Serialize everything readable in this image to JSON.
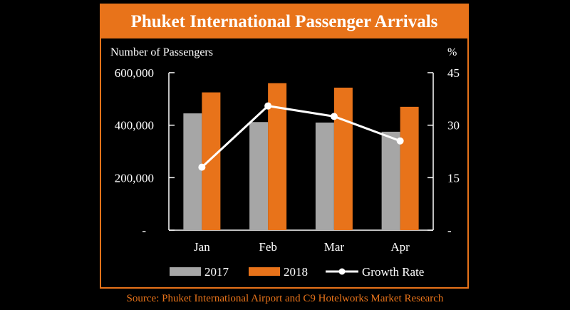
{
  "chart_data": {
    "type": "bar",
    "title": "Phuket International Passenger Arrivals",
    "ylabel_left": "Number of Passengers",
    "ylabel_right": "%",
    "categories": [
      "Jan",
      "Feb",
      "Mar",
      "Apr"
    ],
    "ylim_left": [
      0,
      600000
    ],
    "ylim_right": [
      0,
      45
    ],
    "left_ticks": [
      {
        "value": 0,
        "label": "-"
      },
      {
        "value": 200000,
        "label": "200,000"
      },
      {
        "value": 400000,
        "label": "400,000"
      },
      {
        "value": 600000,
        "label": "600,000"
      }
    ],
    "right_ticks": [
      {
        "value": 0,
        "label": "-"
      },
      {
        "value": 15,
        "label": "15"
      },
      {
        "value": 30,
        "label": "30"
      },
      {
        "value": 45,
        "label": "45"
      }
    ],
    "series": [
      {
        "name": "2017",
        "type": "bar",
        "axis": "left",
        "color": "#a6a6a6",
        "values": [
          445000,
          412000,
          410000,
          375000
        ]
      },
      {
        "name": "2018",
        "type": "bar",
        "axis": "left",
        "color": "#e8731a",
        "values": [
          525000,
          560000,
          543000,
          470000
        ]
      },
      {
        "name": "Growth Rate",
        "type": "line",
        "axis": "right",
        "color": "#ffffff",
        "values": [
          18,
          35.5,
          32.5,
          25.5
        ]
      }
    ],
    "legend": "bottom",
    "grid": false
  },
  "source": "Source: Phuket International Airport and C9 Hotelworks Market Research"
}
